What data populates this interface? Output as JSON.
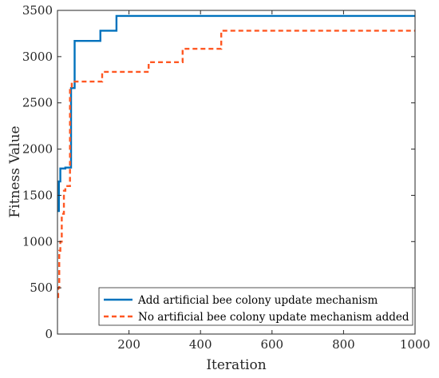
{
  "chart_data": {
    "type": "line",
    "title": "",
    "xlabel": "Iteration",
    "ylabel": "Fitness Value",
    "xlim": [
      0,
      1000
    ],
    "ylim": [
      0,
      3500
    ],
    "xticks": [
      200,
      400,
      600,
      800,
      1000
    ],
    "yticks": [
      0,
      500,
      1000,
      1500,
      2000,
      2500,
      3000,
      3500
    ],
    "grid": false,
    "legend_position": "bottom-right",
    "series": [
      {
        "name": "Add artificial bee colony update mechanism",
        "color": "#0072BD",
        "line_style": "solid",
        "x": [
          0,
          4,
          4,
          8,
          8,
          22,
          22,
          38,
          38,
          48,
          48,
          120,
          120,
          165,
          165,
          1000
        ],
        "y": [
          1330,
          1330,
          1650,
          1650,
          1790,
          1790,
          1800,
          1800,
          2660,
          2660,
          3170,
          3170,
          3280,
          3280,
          3440,
          3440
        ]
      },
      {
        "name": "No artificial bee colony update mechanism added",
        "color": "#FF5722",
        "line_style": "dashed",
        "x": [
          0,
          2,
          2,
          5,
          5,
          8,
          8,
          12,
          12,
          18,
          18,
          22,
          22,
          35,
          35,
          40,
          40,
          125,
          125,
          255,
          255,
          350,
          350,
          458,
          458,
          1000
        ],
        "y": [
          400,
          400,
          500,
          500,
          900,
          900,
          1000,
          1000,
          1300,
          1300,
          1550,
          1550,
          1600,
          1600,
          2650,
          2650,
          2730,
          2730,
          2835,
          2835,
          2940,
          2940,
          3085,
          3085,
          3280,
          3280
        ]
      }
    ]
  }
}
